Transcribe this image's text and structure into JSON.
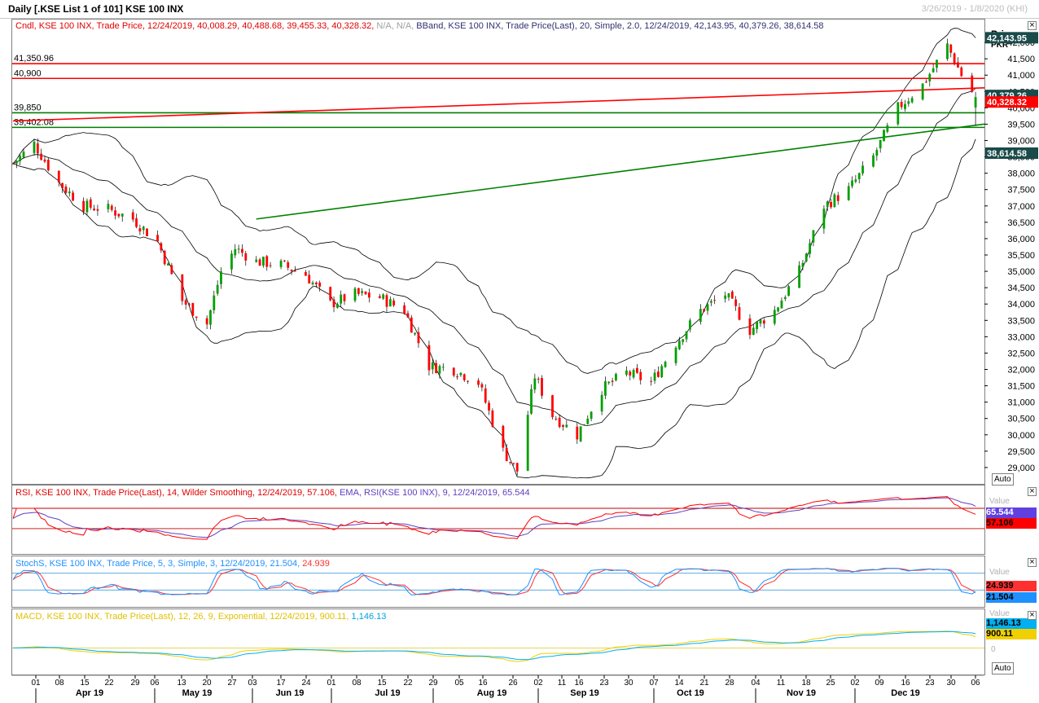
{
  "window": {
    "title": "Daily [.KSE List 1 of 101] KSE 100 INX",
    "date_range": "3/26/2019 - 1/8/2020 (KHI)"
  },
  "price_panel": {
    "legend_cndl": "Cndl, KSE 100 INX, Trade Price, 12/24/2019, 40,008.29, 40,488.68, 39,455.33, 40,328.32,",
    "legend_na": "N/A, N/A,",
    "legend_bband": "BBand, KSE 100 INX, Trade Price(Last), 20, Simple, 2.0, 12/24/2019, 42,143.95, 40,379.26, 38,614.58",
    "axis_title": "Price",
    "axis_currency": "PKR",
    "auto_label": "Auto",
    "close_icon": "×",
    "upper_value": "42,143.95",
    "mid_value": "40,379.26",
    "last_value": "40,328.32",
    "lower_value": "38,614.58",
    "hline_labels": [
      "41,350.96",
      "40,900",
      "39,850",
      "39,402.08"
    ]
  },
  "rsi_panel": {
    "legend_rsi": "RSI, KSE 100 INX, Trade Price(Last), 14, Wilder Smoothing, 12/24/2019, 57.106,",
    "legend_ema": "EMA, RSI(KSE 100 INX), 9, 12/24/2019, 65.544",
    "axis_title": "Value",
    "ema_value": "65.544",
    "rsi_value": "57.106"
  },
  "stoch_panel": {
    "legend_k": "StochS, KSE 100 INX, Trade Price, 5, 3, Simple, 3, 12/24/2019, 21.504,",
    "legend_d": "24.939",
    "axis_title": "Value",
    "d_value": "24.939",
    "k_value": "21.504",
    "auto_label": "Auto"
  },
  "macd_panel": {
    "legend_macd": "MACD, KSE 100 INX, Trade Price(Last), 12, 26, 9, Exponential, 12/24/2019, 900.11,",
    "legend_signal": "1,146.13",
    "axis_title": "Value",
    "signal_value": "1,146.13",
    "macd_value": "900.11",
    "zero_label": "0",
    "auto_label": "Auto"
  },
  "colors": {
    "up": "#00a000",
    "down": "#ff0000",
    "bband": "#000000",
    "hline_red": "#ff0000",
    "hline_green": "#008000",
    "rsi": "#ff0000",
    "rsi_ema": "#6040c0",
    "stoch_k": "#1e90ff",
    "stoch_d": "#ff3030",
    "macd": "#f0d000",
    "macd_signal": "#00b0f0"
  },
  "chart_data": {
    "type": "candlestick",
    "title": "Daily [.KSE List 1 of 101] KSE 100 INX",
    "ylabel": "Price PKR",
    "ylim": [
      28500,
      42700
    ],
    "y_ticks": [
      "29,000",
      "29,500",
      "30,000",
      "30,500",
      "31,000",
      "31,500",
      "32,000",
      "32,500",
      "33,000",
      "33,500",
      "34,000",
      "34,500",
      "35,000",
      "35,500",
      "36,000",
      "36,500",
      "37,000",
      "37,500",
      "38,000",
      "38,500",
      "39,000",
      "39,500",
      "40,000",
      "40,500",
      "41,000",
      "41,500",
      "42,000"
    ],
    "x_day_ticks": [
      "01",
      "08",
      "15",
      "22",
      "29",
      "06",
      "13",
      "20",
      "27",
      "03",
      "17",
      "24",
      "01",
      "08",
      "15",
      "22",
      "29",
      "05",
      "16",
      "26",
      "02",
      "11",
      "16",
      "23",
      "30",
      "07",
      "14",
      "21",
      "28",
      "04",
      "11",
      "18",
      "25",
      "02",
      "09",
      "16",
      "23",
      "30",
      "06"
    ],
    "x_month_labels": [
      "Apr 19",
      "May 19",
      "Jun 19",
      "Jul 19",
      "Aug 19",
      "Sep 19",
      "Oct 19",
      "Nov 19",
      "Dec 19"
    ],
    "close_anchors": [
      {
        "date": "2019-03-26",
        "close": 38300
      },
      {
        "date": "2019-04-01",
        "close": 38900
      },
      {
        "date": "2019-04-08",
        "close": 37700
      },
      {
        "date": "2019-04-15",
        "close": 37000
      },
      {
        "date": "2019-04-22",
        "close": 36900
      },
      {
        "date": "2019-04-29",
        "close": 36600
      },
      {
        "date": "2019-05-06",
        "close": 35900
      },
      {
        "date": "2019-05-13",
        "close": 34100
      },
      {
        "date": "2019-05-20",
        "close": 33400
      },
      {
        "date": "2019-05-24",
        "close": 35000
      },
      {
        "date": "2019-05-28",
        "close": 35700
      },
      {
        "date": "2019-06-03",
        "close": 35300
      },
      {
        "date": "2019-06-10",
        "close": 35200
      },
      {
        "date": "2019-06-17",
        "close": 34900
      },
      {
        "date": "2019-06-24",
        "close": 34000
      },
      {
        "date": "2019-07-01",
        "close": 34300
      },
      {
        "date": "2019-07-08",
        "close": 34200
      },
      {
        "date": "2019-07-15",
        "close": 33800
      },
      {
        "date": "2019-07-22",
        "close": 32100
      },
      {
        "date": "2019-07-29",
        "close": 32000
      },
      {
        "date": "2019-08-05",
        "close": 31600
      },
      {
        "date": "2019-08-12",
        "close": 29500
      },
      {
        "date": "2019-08-16",
        "close": 28900
      },
      {
        "date": "2019-08-21",
        "close": 31800
      },
      {
        "date": "2019-08-26",
        "close": 30600
      },
      {
        "date": "2019-09-02",
        "close": 30000
      },
      {
        "date": "2019-09-09",
        "close": 31400
      },
      {
        "date": "2019-09-16",
        "close": 31900
      },
      {
        "date": "2019-09-23",
        "close": 31600
      },
      {
        "date": "2019-09-30",
        "close": 32800
      },
      {
        "date": "2019-10-07",
        "close": 33800
      },
      {
        "date": "2019-10-14",
        "close": 34300
      },
      {
        "date": "2019-10-21",
        "close": 33200
      },
      {
        "date": "2019-10-28",
        "close": 33800
      },
      {
        "date": "2019-11-04",
        "close": 35000
      },
      {
        "date": "2019-11-11",
        "close": 37000
      },
      {
        "date": "2019-11-18",
        "close": 37500
      },
      {
        "date": "2019-11-25",
        "close": 38500
      },
      {
        "date": "2019-12-02",
        "close": 40000
      },
      {
        "date": "2019-12-09",
        "close": 40700
      },
      {
        "date": "2019-12-16",
        "close": 41900
      },
      {
        "date": "2019-12-20",
        "close": 41000
      },
      {
        "date": "2019-12-24",
        "close": 40328.32
      }
    ],
    "last_candle": {
      "date": "2019-12-24",
      "open": 40008.29,
      "high": 40488.68,
      "low": 39455.33,
      "close": 40328.32
    },
    "bollinger_last": {
      "upper": 42143.95,
      "middle": 40379.26,
      "lower": 38614.58
    },
    "horizontal_lines": [
      41350.96,
      40900,
      39850,
      39402.08
    ],
    "rsi": {
      "ylim": [
        0,
        100
      ],
      "last": 57.106,
      "ema_last": 65.544,
      "levels": [
        70,
        30
      ]
    },
    "stochastic": {
      "ylim": [
        0,
        100
      ],
      "k_last": 21.504,
      "d_last": 24.939,
      "levels": [
        80,
        20
      ]
    },
    "macd": {
      "macd_last": 900.11,
      "signal_last": 1146.13
    }
  }
}
